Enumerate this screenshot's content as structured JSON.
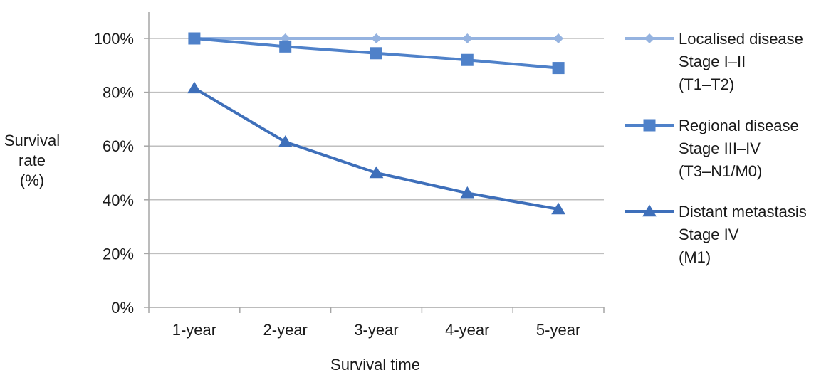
{
  "chart_data": {
    "type": "line",
    "categories": [
      "1-year",
      "2-year",
      "3-year",
      "4-year",
      "5-year"
    ],
    "series": [
      {
        "name": "Localised disease",
        "label_lines": [
          "Localised disease",
          "Stage I–II",
          "(T1–T2)"
        ],
        "values": [
          100,
          100,
          100,
          100,
          100
        ],
        "color": "#95B3E0",
        "marker": "diamond"
      },
      {
        "name": "Regional disease",
        "label_lines": [
          "Regional disease",
          "Stage III–IV",
          "(T3–N1/M0)"
        ],
        "values": [
          100,
          97,
          94.5,
          92,
          89
        ],
        "color": "#4F81C9",
        "marker": "square"
      },
      {
        "name": "Distant metastasis",
        "label_lines": [
          "Distant metastasis",
          "Stage IV",
          "(M1)"
        ],
        "values": [
          81.5,
          61.5,
          50,
          42.5,
          36.5
        ],
        "color": "#3E6FBA",
        "marker": "triangle"
      }
    ],
    "ylabel_lines": [
      "Survival",
      "rate",
      "(%)"
    ],
    "xlabel": "Survival time",
    "ylim": [
      0,
      100
    ],
    "ytick_values": [
      0,
      20,
      40,
      60,
      80,
      100
    ],
    "ytick_labels": [
      "0%",
      "20%",
      "40%",
      "60%",
      "80%",
      "100%"
    ],
    "grid": true,
    "legend_position": "right",
    "gridline_color": "#BFBFBF",
    "axis_color": "#A6A6A6"
  }
}
